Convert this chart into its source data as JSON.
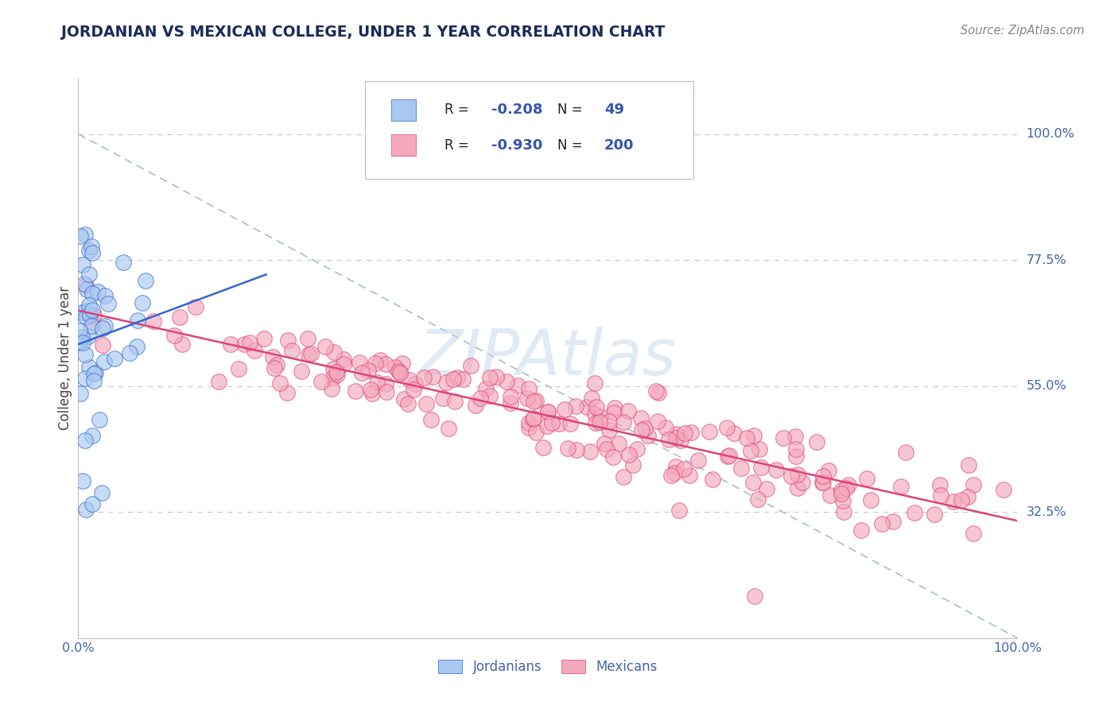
{
  "title": "JORDANIAN VS MEXICAN COLLEGE, UNDER 1 YEAR CORRELATION CHART",
  "source_text": "Source: ZipAtlas.com",
  "ylabel": "College, Under 1 year",
  "xlim": [
    0.0,
    1.0
  ],
  "ylim": [
    0.1,
    1.1
  ],
  "ytick_labels": [
    "32.5%",
    "55.0%",
    "77.5%",
    "100.0%"
  ],
  "ytick_positions": [
    0.325,
    0.55,
    0.775,
    1.0
  ],
  "jordanian_color": "#a8c8f0",
  "mexican_color": "#f4a8bc",
  "jordanian_R": -0.208,
  "jordanian_N": 49,
  "mexican_R": -0.93,
  "mexican_N": 200,
  "legend_label_jordan": "Jordanians",
  "legend_label_mexico": "Mexicans",
  "watermark": "ZIPAtlas",
  "watermark_color": "#c8d8ec",
  "title_color": "#1a2a5a",
  "source_color": "#888888",
  "axis_label_color": "#444444",
  "tick_color": "#4466aa",
  "grid_color": "#cccccc",
  "diag_line_color": "#aabbcc",
  "jordan_line_color": "#3366cc",
  "mexico_line_color": "#dd4477",
  "bg_color": "#ffffff",
  "legend_text_color": "#222222",
  "legend_value_color": "#3355aa"
}
